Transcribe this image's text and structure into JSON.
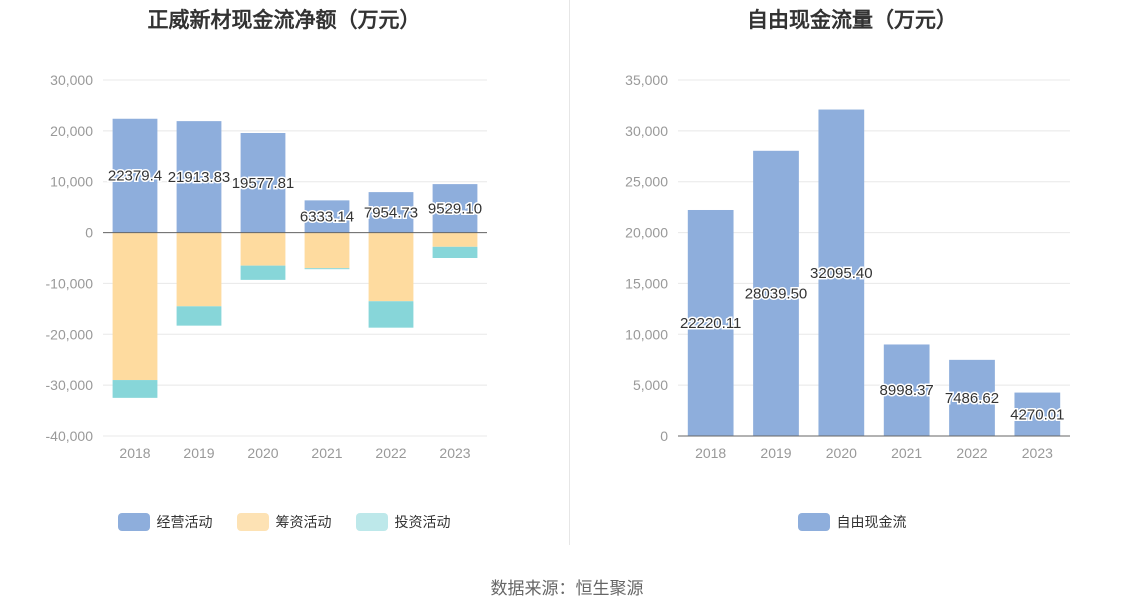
{
  "footer": {
    "source": "数据来源：恒生聚源"
  },
  "legend_left": [
    {
      "label": "经营活动",
      "color": "#8eaedc"
    },
    {
      "label": "筹资活动",
      "color": "#fde2b4"
    },
    {
      "label": "投资活动",
      "color": "#bde8ea"
    }
  ],
  "legend_right": [
    {
      "label": "自由现金流",
      "color": "#8eaedc"
    }
  ],
  "chart_data": [
    {
      "type": "bar",
      "stacked": true,
      "title": "正威新材现金流净额（万元）",
      "categories": [
        "2018",
        "2019",
        "2020",
        "2021",
        "2022",
        "2023"
      ],
      "ylim": [
        -40000,
        30000
      ],
      "yticks": [
        -40000,
        -30000,
        -20000,
        -10000,
        0,
        10000,
        20000,
        30000
      ],
      "ytick_labels": [
        "-40,000",
        "-30,000",
        "-20,000",
        "-10,000",
        "0",
        "10,000",
        "20,000",
        "30,000"
      ],
      "grid": true,
      "legend_position": "bottom",
      "series": [
        {
          "name": "经营活动",
          "color": "#8eaedc",
          "values": [
            22379.4,
            21913.83,
            19577.81,
            6333.14,
            7954.73,
            9529.1
          ],
          "labels": [
            "22379.4",
            "21913.83",
            "19577.81",
            "6333.14",
            "7954.73",
            "9529.10"
          ]
        },
        {
          "name": "筹资活动",
          "color": "#fedb9f",
          "values": [
            -29000,
            -14500,
            -6500,
            -7000,
            -13500,
            -2800
          ]
        },
        {
          "name": "投资活动",
          "color": "#87d6d9",
          "values": [
            -3500,
            -3800,
            -2800,
            -200,
            -5200,
            -2200
          ]
        }
      ]
    },
    {
      "type": "bar",
      "title": "自由现金流量（万元）",
      "categories": [
        "2018",
        "2019",
        "2020",
        "2021",
        "2022",
        "2023"
      ],
      "ylim": [
        0,
        35000
      ],
      "yticks": [
        0,
        5000,
        10000,
        15000,
        20000,
        25000,
        30000,
        35000
      ],
      "ytick_labels": [
        "0",
        "5,000",
        "10,000",
        "15,000",
        "20,000",
        "25,000",
        "30,000",
        "35,000"
      ],
      "grid": true,
      "legend_position": "bottom",
      "series": [
        {
          "name": "自由现金流",
          "color": "#8eaedc",
          "values": [
            22220.11,
            28039.5,
            32095.4,
            8998.37,
            7486.62,
            4270.01
          ],
          "labels": [
            "22220.11",
            "28039.50",
            "32095.40",
            "8998.37",
            "7486.62",
            "4270.01"
          ]
        }
      ]
    }
  ]
}
